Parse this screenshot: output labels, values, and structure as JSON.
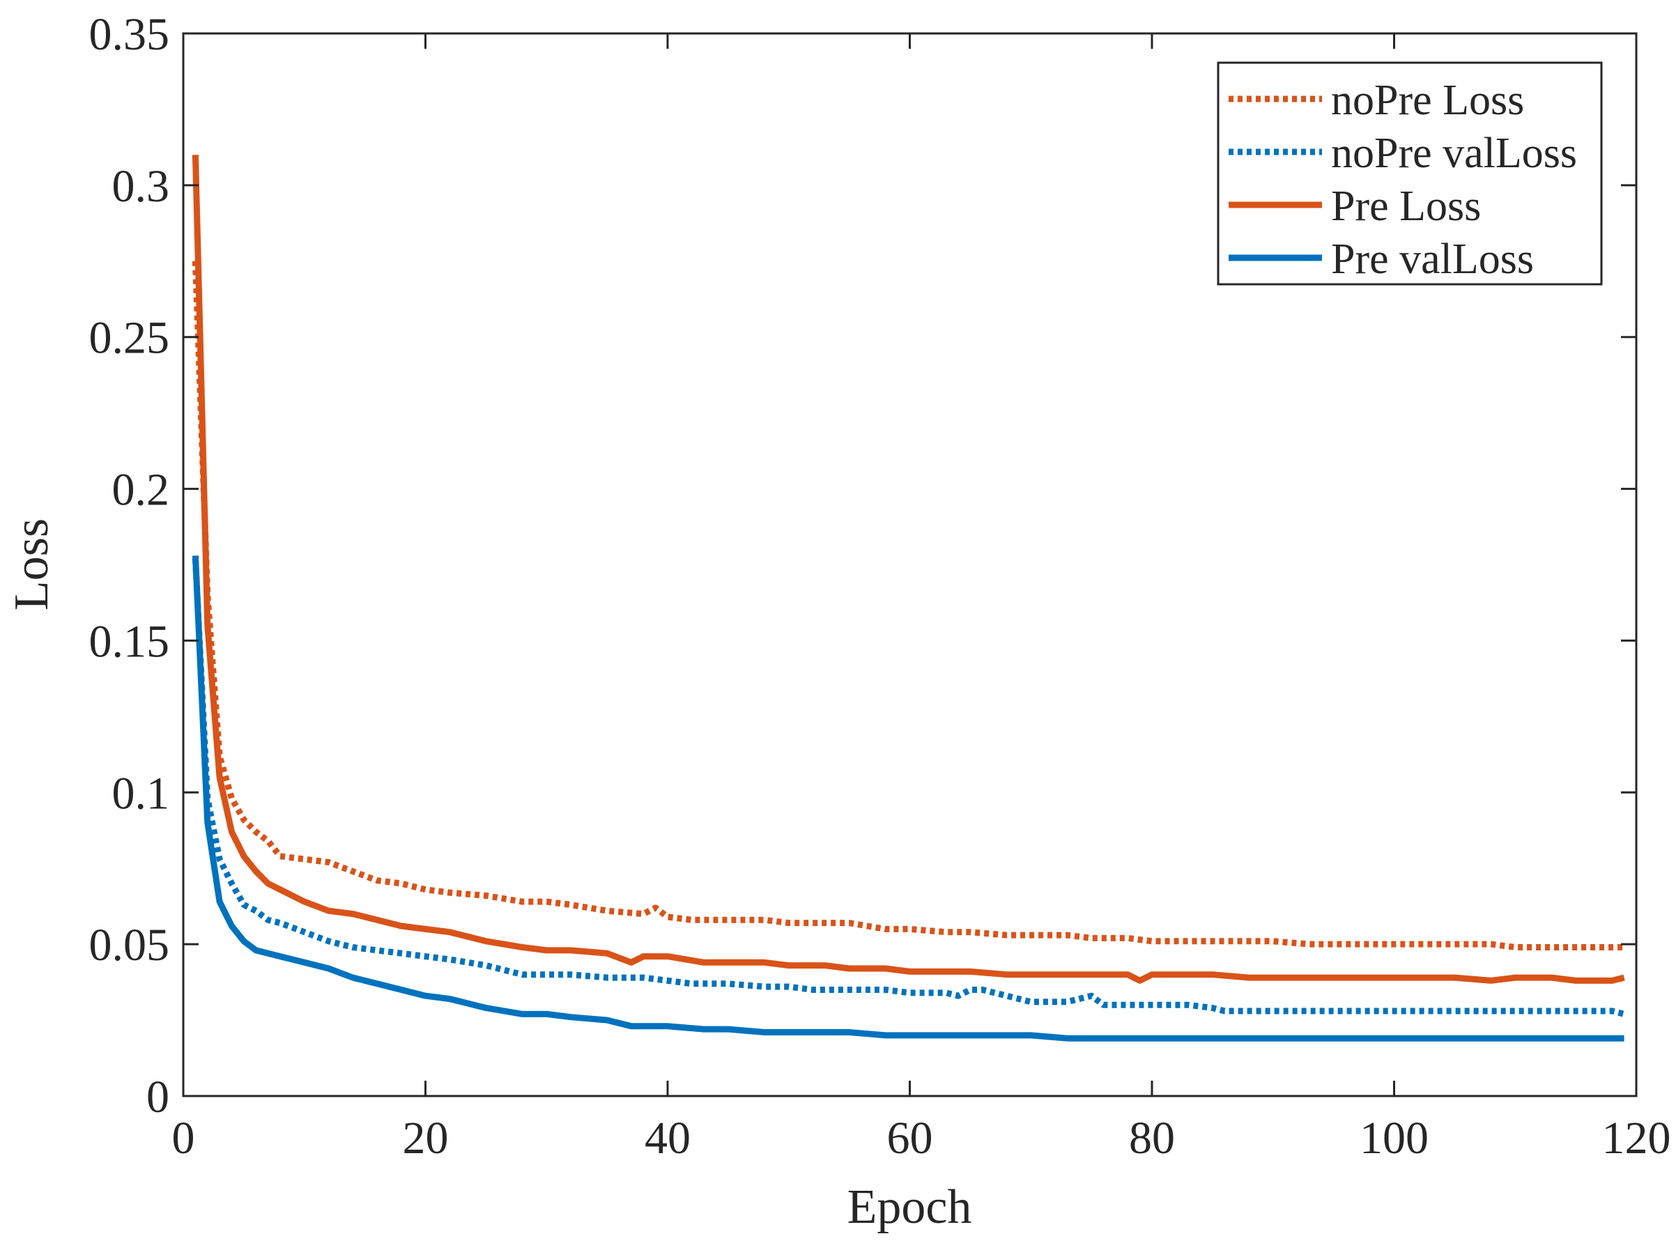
{
  "chart_data": {
    "type": "line",
    "xlabel": "Epoch",
    "ylabel": "Loss",
    "xlim": [
      0,
      120
    ],
    "ylim": [
      0,
      0.35
    ],
    "xticks": [
      0,
      20,
      40,
      60,
      80,
      100,
      120
    ],
    "yticks": [
      0,
      0.05,
      0.1,
      0.15,
      0.2,
      0.25,
      0.3,
      0.35
    ],
    "xtick_labels": [
      "0",
      "20",
      "40",
      "60",
      "80",
      "100",
      "120"
    ],
    "ytick_labels": [
      "0",
      "0.05",
      "0.1",
      "0.15",
      "0.2",
      "0.25",
      "0.3",
      "0.35"
    ],
    "grid": false,
    "legend_position": "top-right",
    "series": [
      {
        "name": "noPre Loss",
        "color": "#D95319",
        "style": "dotted",
        "x": [
          1,
          2,
          3,
          4,
          5,
          6,
          7,
          8,
          10,
          12,
          14,
          16,
          18,
          20,
          22,
          25,
          28,
          30,
          32,
          35,
          38,
          39,
          40,
          42,
          45,
          48,
          50,
          52,
          55,
          58,
          60,
          63,
          65,
          68,
          70,
          73,
          75,
          78,
          80,
          83,
          85,
          88,
          90,
          93,
          95,
          98,
          100,
          103,
          105,
          108,
          110,
          113,
          115,
          118,
          119
        ],
        "values": [
          0.275,
          0.165,
          0.112,
          0.098,
          0.091,
          0.087,
          0.084,
          0.079,
          0.078,
          0.077,
          0.074,
          0.071,
          0.07,
          0.068,
          0.067,
          0.066,
          0.064,
          0.064,
          0.063,
          0.061,
          0.06,
          0.062,
          0.059,
          0.058,
          0.058,
          0.058,
          0.057,
          0.057,
          0.057,
          0.055,
          0.055,
          0.054,
          0.054,
          0.053,
          0.053,
          0.053,
          0.052,
          0.052,
          0.051,
          0.051,
          0.051,
          0.051,
          0.051,
          0.05,
          0.05,
          0.05,
          0.05,
          0.05,
          0.05,
          0.05,
          0.049,
          0.049,
          0.049,
          0.049,
          0.049
        ]
      },
      {
        "name": "noPre valLoss",
        "color": "#0072BD",
        "style": "dotted",
        "x": [
          1,
          2,
          3,
          4,
          5,
          6,
          7,
          8,
          10,
          12,
          14,
          16,
          18,
          20,
          22,
          25,
          28,
          30,
          32,
          35,
          38,
          40,
          42,
          45,
          48,
          50,
          52,
          55,
          58,
          60,
          63,
          64,
          65,
          66,
          68,
          70,
          73,
          75,
          76,
          78,
          80,
          83,
          85,
          86,
          88,
          90,
          93,
          95,
          98,
          100,
          103,
          105,
          108,
          110,
          113,
          115,
          118,
          119
        ],
        "values": [
          0.177,
          0.098,
          0.078,
          0.07,
          0.063,
          0.061,
          0.058,
          0.057,
          0.054,
          0.051,
          0.049,
          0.048,
          0.047,
          0.046,
          0.045,
          0.043,
          0.04,
          0.04,
          0.04,
          0.039,
          0.039,
          0.038,
          0.037,
          0.037,
          0.036,
          0.036,
          0.035,
          0.035,
          0.035,
          0.034,
          0.034,
          0.033,
          0.035,
          0.035,
          0.033,
          0.031,
          0.031,
          0.033,
          0.03,
          0.03,
          0.03,
          0.03,
          0.029,
          0.028,
          0.028,
          0.028,
          0.028,
          0.028,
          0.028,
          0.028,
          0.028,
          0.028,
          0.028,
          0.028,
          0.028,
          0.028,
          0.028,
          0.027
        ]
      },
      {
        "name": "Pre Loss",
        "color": "#D95319",
        "style": "solid",
        "x": [
          1,
          2,
          3,
          4,
          5,
          6,
          7,
          8,
          10,
          12,
          14,
          16,
          18,
          20,
          22,
          25,
          28,
          30,
          32,
          35,
          37,
          38,
          40,
          43,
          45,
          48,
          50,
          53,
          55,
          58,
          60,
          63,
          65,
          68,
          70,
          73,
          75,
          78,
          79,
          80,
          83,
          85,
          88,
          90,
          93,
          95,
          98,
          100,
          103,
          105,
          108,
          110,
          113,
          115,
          118,
          119
        ],
        "values": [
          0.31,
          0.155,
          0.105,
          0.087,
          0.079,
          0.074,
          0.07,
          0.068,
          0.064,
          0.061,
          0.06,
          0.058,
          0.056,
          0.055,
          0.054,
          0.051,
          0.049,
          0.048,
          0.048,
          0.047,
          0.044,
          0.046,
          0.046,
          0.044,
          0.044,
          0.044,
          0.043,
          0.043,
          0.042,
          0.042,
          0.041,
          0.041,
          0.041,
          0.04,
          0.04,
          0.04,
          0.04,
          0.04,
          0.038,
          0.04,
          0.04,
          0.04,
          0.039,
          0.039,
          0.039,
          0.039,
          0.039,
          0.039,
          0.039,
          0.039,
          0.038,
          0.039,
          0.039,
          0.038,
          0.038,
          0.039
        ]
      },
      {
        "name": "Pre valLoss",
        "color": "#0072BD",
        "style": "solid",
        "x": [
          1,
          2,
          3,
          4,
          5,
          6,
          7,
          8,
          10,
          12,
          14,
          16,
          18,
          20,
          22,
          25,
          28,
          30,
          32,
          35,
          37,
          40,
          43,
          45,
          48,
          50,
          53,
          55,
          58,
          60,
          63,
          65,
          68,
          70,
          73,
          75,
          78,
          80,
          83,
          85,
          88,
          90,
          93,
          95,
          98,
          100,
          103,
          105,
          108,
          110,
          113,
          115,
          118,
          119
        ],
        "values": [
          0.178,
          0.09,
          0.064,
          0.056,
          0.051,
          0.048,
          0.047,
          0.046,
          0.044,
          0.042,
          0.039,
          0.037,
          0.035,
          0.033,
          0.032,
          0.029,
          0.027,
          0.027,
          0.026,
          0.025,
          0.023,
          0.023,
          0.022,
          0.022,
          0.021,
          0.021,
          0.021,
          0.021,
          0.02,
          0.02,
          0.02,
          0.02,
          0.02,
          0.02,
          0.019,
          0.019,
          0.019,
          0.019,
          0.019,
          0.019,
          0.019,
          0.019,
          0.019,
          0.019,
          0.019,
          0.019,
          0.019,
          0.019,
          0.019,
          0.019,
          0.019,
          0.019,
          0.019,
          0.019
        ]
      }
    ]
  }
}
